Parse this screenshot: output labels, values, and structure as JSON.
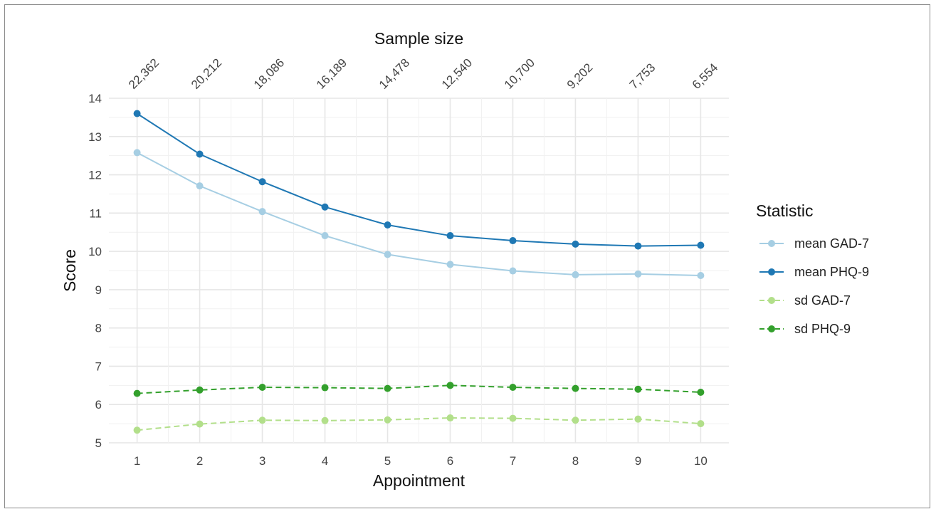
{
  "chart_data": {
    "type": "line",
    "title": "",
    "top_axis_title": "Sample size",
    "xlabel": "Appointment",
    "ylabel": "Score",
    "x": [
      1,
      2,
      3,
      4,
      5,
      6,
      7,
      8,
      9,
      10
    ],
    "x_tick_labels": [
      "1",
      "2",
      "3",
      "4",
      "5",
      "6",
      "7",
      "8",
      "9",
      "10"
    ],
    "sample_sizes": [
      "22,362",
      "20,212",
      "18,086",
      "16,189",
      "14,478",
      "12,540",
      "10,700",
      "9,202",
      "7,753",
      "6,554"
    ],
    "ylim": [
      5,
      14
    ],
    "y_ticks": [
      5,
      6,
      7,
      8,
      9,
      10,
      11,
      12,
      13,
      14
    ],
    "y_tick_labels": [
      "5",
      "6",
      "7",
      "8",
      "9",
      "10",
      "11",
      "12",
      "13",
      "14"
    ],
    "grid": true,
    "legend": {
      "title": "Statistic",
      "placement": "right"
    },
    "series": [
      {
        "name": "mean GAD-7",
        "color": "#a6cee3",
        "dash": "solid",
        "values": [
          12.58,
          11.71,
          11.04,
          10.41,
          9.92,
          9.66,
          9.49,
          9.39,
          9.41,
          9.37
        ]
      },
      {
        "name": "mean PHQ-9",
        "color": "#1f78b4",
        "dash": "solid",
        "values": [
          13.6,
          12.54,
          11.82,
          11.16,
          10.69,
          10.41,
          10.28,
          10.19,
          10.14,
          10.16
        ]
      },
      {
        "name": "sd GAD-7",
        "color": "#b2df8a",
        "dash": "dashed",
        "values": [
          5.33,
          5.49,
          5.59,
          5.58,
          5.6,
          5.65,
          5.64,
          5.59,
          5.62,
          5.5
        ]
      },
      {
        "name": "sd PHQ-9",
        "color": "#33a02c",
        "dash": "dashed",
        "values": [
          6.29,
          6.38,
          6.45,
          6.44,
          6.42,
          6.5,
          6.45,
          6.42,
          6.4,
          6.32
        ]
      }
    ]
  }
}
